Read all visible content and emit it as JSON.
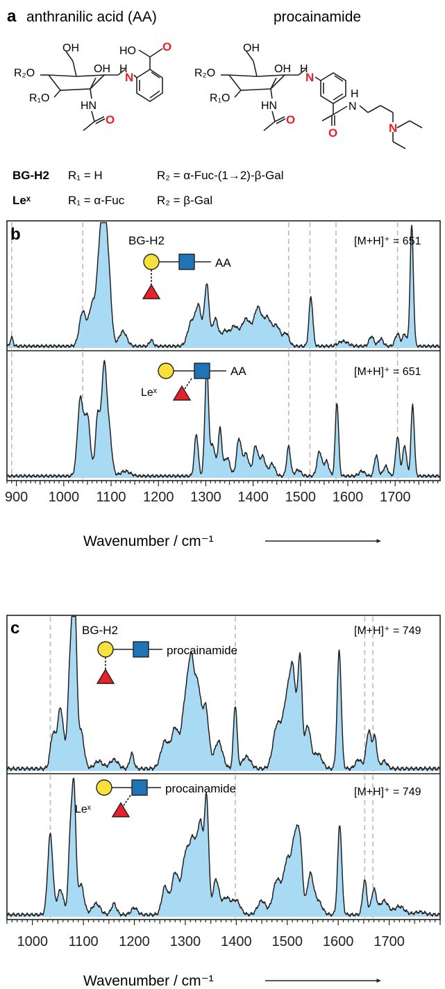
{
  "panel_a": {
    "letter": "a",
    "title_aa": "anthranilic acid (AA)",
    "title_proc": "procainamide",
    "atoms": {
      "oh": "OH",
      "r2o": "R₂O",
      "r1o": "R₁O",
      "hn": "HN",
      "n": "N",
      "h": "H",
      "o": "O",
      "ho": "HO"
    },
    "legend": [
      {
        "name": "BG-H2",
        "r1": "R₁ = H",
        "r2": "R₂ = α-Fuc-(1→2)-β-Gal"
      },
      {
        "name": "Leˣ",
        "r1": "R₁ = α-Fuc",
        "r2": "R₂ = β-Gal"
      }
    ]
  },
  "colors": {
    "fill": "#a8daf3",
    "line": "#231f20",
    "galactose": "#f7e13a",
    "glcnac": "#1f73b7",
    "fucose": "#e8202a",
    "dash": "#b9b9b9",
    "red_atom": "#e8202a"
  },
  "icons": [
    "yellow-circle-galactose-icon",
    "blue-square-glcnac-icon",
    "red-triangle-fucose-icon"
  ],
  "chart_data": [
    {
      "type": "area",
      "panel": "b",
      "xlabel": "Wavenumber / cm⁻¹",
      "xlim": [
        880,
        1795
      ],
      "xticks": [
        900,
        1000,
        1100,
        1200,
        1300,
        1400,
        1500,
        1600,
        1700
      ],
      "dashed_lines": [
        890,
        1040,
        1475,
        1520,
        1575,
        1705
      ],
      "series": [
        {
          "name": "BG-H2",
          "label": "AA",
          "mass": "[M+H]⁺ = 651",
          "peaks": [
            [
              890,
              0.07,
              3
            ],
            [
              1040,
              0.28,
              7
            ],
            [
              1060,
              0.33,
              7
            ],
            [
              1075,
              0.6,
              6
            ],
            [
              1085,
              0.92,
              6
            ],
            [
              1095,
              0.5,
              6
            ],
            [
              1125,
              0.12,
              8
            ],
            [
              1185,
              0.05,
              4
            ],
            [
              1270,
              0.2,
              8
            ],
            [
              1285,
              0.3,
              6
            ],
            [
              1302,
              0.5,
              5
            ],
            [
              1320,
              0.22,
              6
            ],
            [
              1340,
              0.12,
              8
            ],
            [
              1360,
              0.15,
              8
            ],
            [
              1385,
              0.22,
              10
            ],
            [
              1410,
              0.3,
              8
            ],
            [
              1430,
              0.22,
              8
            ],
            [
              1450,
              0.16,
              8
            ],
            [
              1470,
              0.1,
              6
            ],
            [
              1522,
              0.4,
              4
            ],
            [
              1590,
              0.04,
              10
            ],
            [
              1650,
              0.08,
              5
            ],
            [
              1670,
              0.06,
              5
            ],
            [
              1705,
              0.1,
              5
            ],
            [
              1720,
              0.1,
              4
            ],
            [
              1735,
              0.98,
              3.5
            ]
          ]
        },
        {
          "name": "Leˣ",
          "label": "AA",
          "mass": "[M+H]⁺ = 651",
          "peaks": [
            [
              1035,
              0.62,
              6
            ],
            [
              1050,
              0.48,
              6
            ],
            [
              1072,
              0.5,
              5
            ],
            [
              1085,
              0.82,
              5
            ],
            [
              1095,
              0.38,
              6
            ],
            [
              1130,
              0.04,
              10
            ],
            [
              1280,
              0.34,
              4
            ],
            [
              1302,
              0.88,
              4
            ],
            [
              1315,
              0.25,
              5
            ],
            [
              1330,
              0.38,
              4
            ],
            [
              1345,
              0.15,
              6
            ],
            [
              1370,
              0.3,
              5
            ],
            [
              1385,
              0.18,
              6
            ],
            [
              1405,
              0.24,
              5
            ],
            [
              1420,
              0.16,
              6
            ],
            [
              1440,
              0.1,
              6
            ],
            [
              1475,
              0.24,
              4
            ],
            [
              1495,
              0.05,
              6
            ],
            [
              1540,
              0.2,
              5
            ],
            [
              1555,
              0.12,
              5
            ],
            [
              1577,
              0.6,
              3.5
            ],
            [
              1630,
              0.04,
              6
            ],
            [
              1660,
              0.17,
              4
            ],
            [
              1680,
              0.08,
              5
            ],
            [
              1705,
              0.32,
              4
            ],
            [
              1720,
              0.25,
              4
            ],
            [
              1737,
              0.58,
              3.5
            ]
          ]
        }
      ]
    },
    {
      "type": "area",
      "panel": "c",
      "xlabel": "Wavenumber / cm⁻¹",
      "xlim": [
        950,
        1800
      ],
      "xticks": [
        1000,
        1100,
        1200,
        1300,
        1400,
        1500,
        1600,
        1700
      ],
      "dashed_lines": [
        1035,
        1398,
        1652,
        1668
      ],
      "series": [
        {
          "name": "BG-H2",
          "label": "procainamide",
          "mass": "[M+H]⁺ = 749",
          "peaks": [
            [
              1040,
              0.22,
              5
            ],
            [
              1055,
              0.4,
              6
            ],
            [
              1075,
              0.75,
              5
            ],
            [
              1083,
              0.97,
              4
            ],
            [
              1095,
              0.25,
              6
            ],
            [
              1130,
              0.05,
              8
            ],
            [
              1160,
              0.06,
              8
            ],
            [
              1195,
              0.1,
              4
            ],
            [
              1260,
              0.18,
              8
            ],
            [
              1280,
              0.26,
              7
            ],
            [
              1300,
              0.42,
              7
            ],
            [
              1312,
              0.62,
              6
            ],
            [
              1325,
              0.5,
              6
            ],
            [
              1340,
              0.4,
              6
            ],
            [
              1365,
              0.18,
              8
            ],
            [
              1398,
              0.42,
              3.5
            ],
            [
              1420,
              0.08,
              8
            ],
            [
              1480,
              0.28,
              8
            ],
            [
              1500,
              0.45,
              8
            ],
            [
              1512,
              0.52,
              6
            ],
            [
              1525,
              0.7,
              4
            ],
            [
              1540,
              0.28,
              6
            ],
            [
              1560,
              0.1,
              8
            ],
            [
              1602,
              0.78,
              4
            ],
            [
              1640,
              0.06,
              6
            ],
            [
              1660,
              0.25,
              5
            ],
            [
              1672,
              0.2,
              4
            ],
            [
              1690,
              0.05,
              6
            ]
          ]
        },
        {
          "name": "Leˣ",
          "label": "procainamide",
          "mass": "[M+H]⁺ = 749",
          "peaks": [
            [
              1035,
              0.58,
              5
            ],
            [
              1055,
              0.18,
              6
            ],
            [
              1075,
              0.62,
              4
            ],
            [
              1082,
              0.8,
              3.5
            ],
            [
              1095,
              0.22,
              6
            ],
            [
              1125,
              0.08,
              8
            ],
            [
              1160,
              0.08,
              5
            ],
            [
              1200,
              0.05,
              6
            ],
            [
              1260,
              0.2,
              6
            ],
            [
              1280,
              0.3,
              7
            ],
            [
              1300,
              0.4,
              7
            ],
            [
              1315,
              0.5,
              7
            ],
            [
              1330,
              0.62,
              6
            ],
            [
              1342,
              0.78,
              4
            ],
            [
              1360,
              0.25,
              6
            ],
            [
              1380,
              0.12,
              8
            ],
            [
              1400,
              0.1,
              8
            ],
            [
              1450,
              0.1,
              8
            ],
            [
              1480,
              0.25,
              8
            ],
            [
              1500,
              0.38,
              7
            ],
            [
              1515,
              0.5,
              6
            ],
            [
              1525,
              0.46,
              5
            ],
            [
              1545,
              0.28,
              6
            ],
            [
              1560,
              0.1,
              8
            ],
            [
              1603,
              0.65,
              4
            ],
            [
              1652,
              0.25,
              4
            ],
            [
              1670,
              0.18,
              5
            ],
            [
              1690,
              0.1,
              8
            ],
            [
              1720,
              0.06,
              10
            ],
            [
              1760,
              0.02,
              10
            ]
          ]
        }
      ]
    }
  ]
}
